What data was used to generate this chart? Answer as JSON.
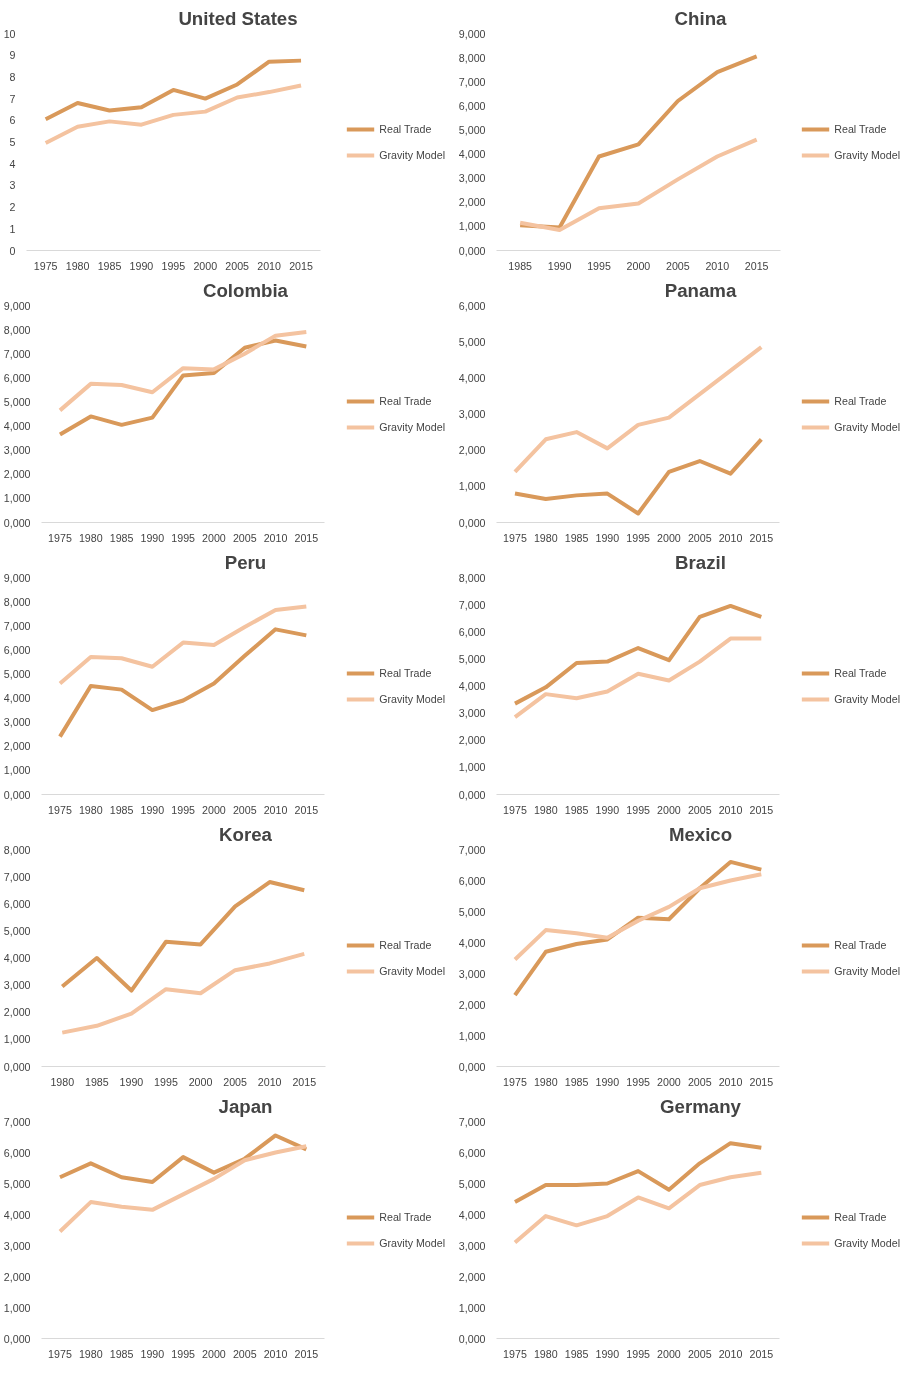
{
  "chart_data": [
    {
      "type": "line",
      "title": "United States",
      "categories": [
        "1975",
        "1980",
        "1985",
        "1990",
        "1995",
        "2000",
        "2005",
        "2010",
        "2015"
      ],
      "ylim": [
        0,
        10
      ],
      "yticks": [
        0,
        1,
        2,
        3,
        4,
        5,
        6,
        7,
        8,
        9,
        10
      ],
      "legend": "right",
      "grid": false,
      "marker": "none",
      "line_style": "solid",
      "series": [
        {
          "name": "Real Trade",
          "color": "#d9995a",
          "values": [
            6.05,
            6.8,
            6.45,
            6.6,
            7.4,
            7.0,
            7.65,
            8.7,
            8.75
          ]
        },
        {
          "name": "Gravity Model",
          "color": "#f4c3a0",
          "values": [
            4.95,
            5.7,
            5.95,
            5.8,
            6.25,
            6.4,
            7.05,
            7.3,
            7.6
          ]
        }
      ]
    },
    {
      "type": "line",
      "title": "China",
      "categories": [
        "1985",
        "1990",
        "1995",
        "2000",
        "2005",
        "2010",
        "2015"
      ],
      "ylim": [
        0,
        9
      ],
      "yticks": [
        {
          "value": 0,
          "label": "0,000"
        },
        {
          "value": 1,
          "label": "1,000"
        },
        {
          "value": 2,
          "label": "2,000"
        },
        {
          "value": 3,
          "label": "3,000"
        },
        {
          "value": 4,
          "label": "4,000"
        },
        {
          "value": 5,
          "label": "5,000"
        },
        {
          "value": 6,
          "label": "6,000"
        },
        {
          "value": 7,
          "label": "7,000"
        },
        {
          "value": 8,
          "label": "8,000"
        },
        {
          "value": 9,
          "label": "9,000"
        }
      ],
      "legend": "right",
      "grid": false,
      "marker": "none",
      "line_style": "solid",
      "series": [
        {
          "name": "Real Trade",
          "color": "#d9995a",
          "values": [
            1.05,
            0.95,
            3.9,
            4.4,
            6.2,
            7.4,
            8.05
          ]
        },
        {
          "name": "Gravity Model",
          "color": "#f4c3a0",
          "values": [
            1.15,
            0.85,
            1.75,
            1.95,
            2.95,
            3.9,
            4.6
          ]
        }
      ]
    },
    {
      "type": "line",
      "title": "Colombia",
      "categories": [
        "1975",
        "1980",
        "1985",
        "1990",
        "1995",
        "2000",
        "2005",
        "2010",
        "2015"
      ],
      "ylim": [
        0,
        9
      ],
      "yticks": [
        {
          "value": 0,
          "label": "0,000"
        },
        {
          "value": 1,
          "label": "1,000"
        },
        {
          "value": 2,
          "label": "2,000"
        },
        {
          "value": 3,
          "label": "3,000"
        },
        {
          "value": 4,
          "label": "4,000"
        },
        {
          "value": 5,
          "label": "5,000"
        },
        {
          "value": 6,
          "label": "6,000"
        },
        {
          "value": 7,
          "label": "7,000"
        },
        {
          "value": 8,
          "label": "8,000"
        },
        {
          "value": 9,
          "label": "9,000"
        }
      ],
      "legend": "right",
      "grid": false,
      "marker": "none",
      "line_style": "solid",
      "series": [
        {
          "name": "Real Trade",
          "color": "#d9995a",
          "values": [
            3.65,
            4.4,
            4.05,
            4.35,
            6.1,
            6.2,
            7.25,
            7.55,
            7.3
          ]
        },
        {
          "name": "Gravity Model",
          "color": "#f4c3a0",
          "values": [
            4.65,
            5.75,
            5.7,
            5.4,
            6.4,
            6.35,
            7.0,
            7.75,
            7.9
          ]
        }
      ]
    },
    {
      "type": "line",
      "title": "Panama",
      "categories": [
        "1975",
        "1980",
        "1985",
        "1990",
        "1995",
        "2000",
        "2005",
        "2010",
        "2015"
      ],
      "ylim": [
        0,
        6
      ],
      "yticks": [
        {
          "value": 0,
          "label": "0,000"
        },
        {
          "value": 1,
          "label": "1,000"
        },
        {
          "value": 2,
          "label": "2,000"
        },
        {
          "value": 3,
          "label": "3,000"
        },
        {
          "value": 4,
          "label": "4,000"
        },
        {
          "value": 5,
          "label": "5,000"
        },
        {
          "value": 6,
          "label": "6,000"
        }
      ],
      "legend": "right",
      "grid": false,
      "marker": "none",
      "line_style": "solid",
      "series": [
        {
          "name": "Real Trade",
          "color": "#d9995a",
          "values": [
            0.8,
            0.65,
            0.75,
            0.8,
            0.25,
            1.4,
            1.7,
            1.35,
            2.3
          ]
        },
        {
          "name": "Gravity Model",
          "color": "#f4c3a0",
          "values": [
            1.4,
            2.3,
            2.5,
            2.05,
            2.7,
            2.9,
            3.55,
            4.2,
            4.85
          ]
        }
      ]
    },
    {
      "type": "line",
      "title": "Peru",
      "categories": [
        "1975",
        "1980",
        "1985",
        "1990",
        "1995",
        "2000",
        "2005",
        "2010",
        "2015"
      ],
      "ylim": [
        0,
        9
      ],
      "yticks": [
        {
          "value": 0,
          "label": "0,000"
        },
        {
          "value": 1,
          "label": "1,000"
        },
        {
          "value": 2,
          "label": "2,000"
        },
        {
          "value": 3,
          "label": "3,000"
        },
        {
          "value": 4,
          "label": "4,000"
        },
        {
          "value": 5,
          "label": "5,000"
        },
        {
          "value": 6,
          "label": "6,000"
        },
        {
          "value": 7,
          "label": "7,000"
        },
        {
          "value": 8,
          "label": "8,000"
        },
        {
          "value": 9,
          "label": "9,000"
        }
      ],
      "legend": "right",
      "grid": false,
      "marker": "none",
      "line_style": "solid",
      "series": [
        {
          "name": "Real Trade",
          "color": "#d9995a",
          "values": [
            2.4,
            4.5,
            4.35,
            3.5,
            3.9,
            4.6,
            5.75,
            6.85,
            6.6
          ]
        },
        {
          "name": "Gravity Model",
          "color": "#f4c3a0",
          "values": [
            4.6,
            5.7,
            5.65,
            5.3,
            6.3,
            6.2,
            6.95,
            7.65,
            7.8
          ]
        }
      ]
    },
    {
      "type": "line",
      "title": "Brazil",
      "categories": [
        "1975",
        "1980",
        "1985",
        "1990",
        "1995",
        "2000",
        "2005",
        "2010",
        "2015"
      ],
      "ylim": [
        0,
        8
      ],
      "yticks": [
        {
          "value": 0,
          "label": "0,000"
        },
        {
          "value": 1,
          "label": "1,000"
        },
        {
          "value": 2,
          "label": "2,000"
        },
        {
          "value": 3,
          "label": "3,000"
        },
        {
          "value": 4,
          "label": "4,000"
        },
        {
          "value": 5,
          "label": "5,000"
        },
        {
          "value": 6,
          "label": "6,000"
        },
        {
          "value": 7,
          "label": "7,000"
        },
        {
          "value": 8,
          "label": "8,000"
        }
      ],
      "legend": "right",
      "grid": false,
      "marker": "none",
      "line_style": "solid",
      "series": [
        {
          "name": "Real Trade",
          "color": "#d9995a",
          "values": [
            3.35,
            3.95,
            4.85,
            4.9,
            5.4,
            4.95,
            6.55,
            6.95,
            6.55
          ]
        },
        {
          "name": "Gravity Model",
          "color": "#f4c3a0",
          "values": [
            2.85,
            3.7,
            3.55,
            3.8,
            4.45,
            4.2,
            4.9,
            5.75,
            5.75
          ]
        }
      ]
    },
    {
      "type": "line",
      "title": "Korea",
      "categories": [
        "1980",
        "1985",
        "1990",
        "1995",
        "2000",
        "2005",
        "2010",
        "2015"
      ],
      "ylim": [
        0,
        8
      ],
      "yticks": [
        {
          "value": 0,
          "label": "0,000"
        },
        {
          "value": 1,
          "label": "1,000"
        },
        {
          "value": 2,
          "label": "2,000"
        },
        {
          "value": 3,
          "label": "3,000"
        },
        {
          "value": 4,
          "label": "4,000"
        },
        {
          "value": 5,
          "label": "5,000"
        },
        {
          "value": 6,
          "label": "6,000"
        },
        {
          "value": 7,
          "label": "7,000"
        },
        {
          "value": 8,
          "label": "8,000"
        }
      ],
      "legend": "right",
      "grid": false,
      "marker": "none",
      "line_style": "solid",
      "series": [
        {
          "name": "Real Trade",
          "color": "#d9995a",
          "values": [
            2.95,
            4.0,
            2.8,
            4.6,
            4.5,
            5.9,
            6.8,
            6.5
          ]
        },
        {
          "name": "Gravity Model",
          "color": "#f4c3a0",
          "values": [
            1.25,
            1.5,
            1.95,
            2.85,
            2.7,
            3.55,
            3.8,
            4.15
          ]
        }
      ]
    },
    {
      "type": "line",
      "title": "Mexico",
      "categories": [
        "1975",
        "1980",
        "1985",
        "1990",
        "1995",
        "2000",
        "2005",
        "2010",
        "2015"
      ],
      "ylim": [
        0,
        7
      ],
      "yticks": [
        {
          "value": 0,
          "label": "0,000"
        },
        {
          "value": 1,
          "label": "1,000"
        },
        {
          "value": 2,
          "label": "2,000"
        },
        {
          "value": 3,
          "label": "3,000"
        },
        {
          "value": 4,
          "label": "4,000"
        },
        {
          "value": 5,
          "label": "5,000"
        },
        {
          "value": 6,
          "label": "6,000"
        },
        {
          "value": 7,
          "label": "7,000"
        }
      ],
      "legend": "right",
      "grid": false,
      "marker": "none",
      "line_style": "solid",
      "series": [
        {
          "name": "Real Trade",
          "color": "#d9995a",
          "values": [
            2.3,
            3.7,
            3.95,
            4.1,
            4.8,
            4.75,
            5.75,
            6.6,
            6.35
          ]
        },
        {
          "name": "Gravity Model",
          "color": "#f4c3a0",
          "values": [
            3.45,
            4.4,
            4.3,
            4.15,
            4.7,
            5.15,
            5.75,
            6.0,
            6.2
          ]
        }
      ]
    },
    {
      "type": "line",
      "title": "Japan",
      "categories": [
        "1975",
        "1980",
        "1985",
        "1990",
        "1995",
        "2000",
        "2005",
        "2010",
        "2015"
      ],
      "ylim": [
        0,
        7
      ],
      "yticks": [
        {
          "value": 0,
          "label": "0,000"
        },
        {
          "value": 1,
          "label": "1,000"
        },
        {
          "value": 2,
          "label": "2,000"
        },
        {
          "value": 3,
          "label": "3,000"
        },
        {
          "value": 4,
          "label": "4,000"
        },
        {
          "value": 5,
          "label": "5,000"
        },
        {
          "value": 6,
          "label": "6,000"
        },
        {
          "value": 7,
          "label": "7,000"
        }
      ],
      "legend": "right",
      "grid": false,
      "marker": "none",
      "line_style": "solid",
      "series": [
        {
          "name": "Real Trade",
          "color": "#d9995a",
          "values": [
            5.2,
            5.65,
            5.2,
            5.05,
            5.85,
            5.35,
            5.8,
            6.55,
            6.1
          ]
        },
        {
          "name": "Gravity Model",
          "color": "#f4c3a0",
          "values": [
            3.45,
            4.4,
            4.25,
            4.15,
            4.65,
            5.15,
            5.75,
            6.0,
            6.2
          ]
        }
      ]
    },
    {
      "type": "line",
      "title": "Germany",
      "categories": [
        "1975",
        "1980",
        "1985",
        "1990",
        "1995",
        "2000",
        "2005",
        "2010",
        "2015"
      ],
      "ylim": [
        0,
        7
      ],
      "yticks": [
        {
          "value": 0,
          "label": "0,000"
        },
        {
          "value": 1,
          "label": "1,000"
        },
        {
          "value": 2,
          "label": "2,000"
        },
        {
          "value": 3,
          "label": "3,000"
        },
        {
          "value": 4,
          "label": "4,000"
        },
        {
          "value": 5,
          "label": "5,000"
        },
        {
          "value": 6,
          "label": "6,000"
        },
        {
          "value": 7,
          "label": "7,000"
        }
      ],
      "legend": "right",
      "grid": false,
      "marker": "none",
      "line_style": "solid",
      "series": [
        {
          "name": "Real Trade",
          "color": "#d9995a",
          "values": [
            4.4,
            4.95,
            4.95,
            5.0,
            5.4,
            4.8,
            5.65,
            6.3,
            6.15
          ]
        },
        {
          "name": "Gravity Model",
          "color": "#f4c3a0",
          "values": [
            3.1,
            3.95,
            3.65,
            3.95,
            4.55,
            4.2,
            4.95,
            5.2,
            5.35
          ]
        }
      ]
    }
  ]
}
